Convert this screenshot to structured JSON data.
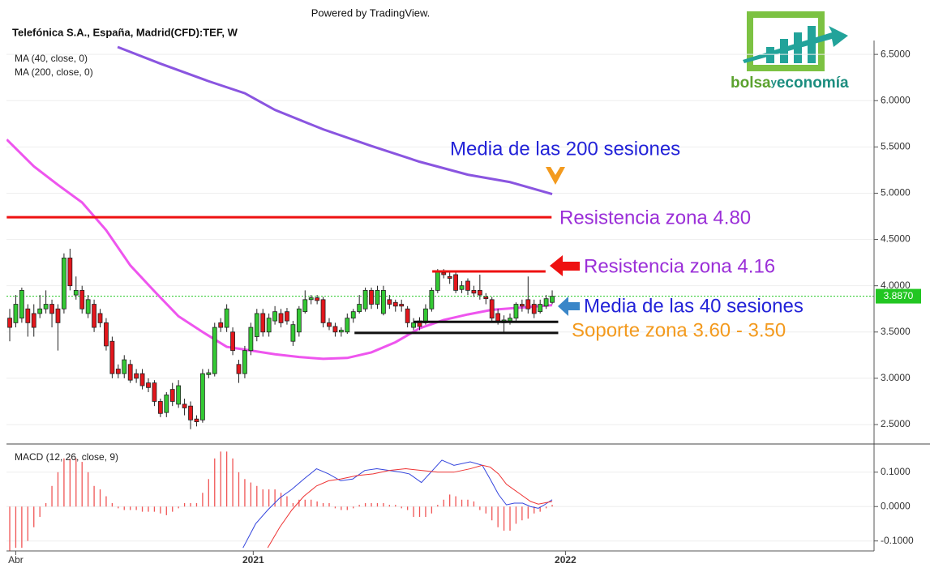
{
  "header": {
    "powered_by": "Powered by TradingView.",
    "logo": {
      "parts": [
        "bolsa",
        "y",
        "economía"
      ]
    }
  },
  "chart_data": [
    {
      "type": "candlestick",
      "title": "Telefónica S.A., España, Madrid(CFD):TEF, W",
      "x": [
        -1,
        0,
        1,
        2,
        3,
        4,
        5,
        6,
        7,
        8,
        9,
        10,
        11,
        12,
        13,
        14,
        15,
        16,
        17,
        18,
        19,
        20,
        21,
        22,
        23,
        24,
        25,
        26,
        27,
        28,
        29,
        30,
        31,
        32,
        33,
        34,
        35,
        36,
        37,
        38,
        39,
        40,
        41,
        42,
        43,
        44,
        45,
        46,
        47,
        48,
        49,
        50,
        51,
        52,
        53,
        54,
        55,
        56,
        57,
        58,
        59,
        60,
        61,
        62,
        63,
        64,
        65,
        66,
        67,
        68,
        69,
        70,
        71,
        72,
        73,
        74,
        75,
        76,
        77,
        78,
        79,
        80,
        81,
        82,
        83,
        84,
        85,
        86,
        87,
        88,
        89
      ],
      "open": [
        3.65,
        3.6,
        3.65,
        3.75,
        3.7,
        3.7,
        3.75,
        3.8,
        3.75,
        3.75,
        4.3,
        3.9,
        3.95,
        3.7,
        3.8,
        3.7,
        3.6,
        3.4,
        3.1,
        3.05,
        3.15,
        3.05,
        3.05,
        2.95,
        2.95,
        2.75,
        2.63,
        2.88,
        2.72,
        2.72,
        2.7,
        2.56,
        2.55,
        3.04,
        3.05,
        3.6,
        3.55,
        3.5,
        3.15,
        3.05,
        3.3,
        3.45,
        3.7,
        3.5,
        3.62,
        3.7,
        3.72,
        3.4,
        3.5,
        3.72,
        3.85,
        3.87,
        3.85,
        3.6,
        3.56,
        3.5,
        3.5,
        3.65,
        3.72,
        3.75,
        3.95,
        3.8,
        3.7,
        3.85,
        3.82,
        3.8,
        3.75,
        3.55,
        3.62,
        3.6,
        3.75,
        3.95,
        4.14,
        4.1,
        4.12,
        3.96,
        4.05,
        3.95,
        3.95,
        3.88,
        3.85,
        3.7,
        3.6,
        3.62,
        3.65,
        3.8,
        3.85,
        3.8,
        3.72,
        3.78,
        3.82
      ],
      "high": [
        3.75,
        3.9,
        3.98,
        3.8,
        3.8,
        3.9,
        3.95,
        3.85,
        3.8,
        4.35,
        4.4,
        4.1,
        4.0,
        3.9,
        3.85,
        3.75,
        3.65,
        3.45,
        3.15,
        3.25,
        3.2,
        3.1,
        3.1,
        3.0,
        2.98,
        2.78,
        2.85,
        2.95,
        2.98,
        2.78,
        2.75,
        2.6,
        3.1,
        3.1,
        3.6,
        3.65,
        3.8,
        3.55,
        3.2,
        3.35,
        3.6,
        3.75,
        3.75,
        3.7,
        3.78,
        3.75,
        3.76,
        3.62,
        3.78,
        3.95,
        3.9,
        3.9,
        3.88,
        3.65,
        3.6,
        3.55,
        3.7,
        3.75,
        3.9,
        3.98,
        3.98,
        4.0,
        4.0,
        3.9,
        3.85,
        3.85,
        3.78,
        3.65,
        3.66,
        3.8,
        3.98,
        4.18,
        4.18,
        4.15,
        4.15,
        4.05,
        4.08,
        4.0,
        4.12,
        3.92,
        3.88,
        3.75,
        3.68,
        3.7,
        3.82,
        3.85,
        4.1,
        3.85,
        3.85,
        3.9,
        3.95
      ],
      "low": [
        3.4,
        3.55,
        3.6,
        3.45,
        3.45,
        3.65,
        3.7,
        3.55,
        3.3,
        3.7,
        3.95,
        3.85,
        3.7,
        3.65,
        3.5,
        3.55,
        3.3,
        3.0,
        3.0,
        3.0,
        2.95,
        2.95,
        2.88,
        2.85,
        2.7,
        2.58,
        2.58,
        2.7,
        2.68,
        2.6,
        2.45,
        2.48,
        2.52,
        3.0,
        3.02,
        3.5,
        3.5,
        3.25,
        2.95,
        3.0,
        3.25,
        3.4,
        3.45,
        3.45,
        3.58,
        3.55,
        3.58,
        3.35,
        3.45,
        3.7,
        3.8,
        3.8,
        3.55,
        3.52,
        3.45,
        3.45,
        3.48,
        3.6,
        3.7,
        3.72,
        3.75,
        3.75,
        3.68,
        3.75,
        3.72,
        3.72,
        3.55,
        3.52,
        3.52,
        3.58,
        3.72,
        3.92,
        4.08,
        4.02,
        3.92,
        3.92,
        3.9,
        3.88,
        3.85,
        3.8,
        3.6,
        3.58,
        3.5,
        3.58,
        3.62,
        3.72,
        3.7,
        3.65,
        3.7,
        3.75,
        3.8
      ],
      "close": [
        3.55,
        3.8,
        3.95,
        3.6,
        3.55,
        3.75,
        3.8,
        3.7,
        3.6,
        4.3,
        4.0,
        3.95,
        3.75,
        3.85,
        3.55,
        3.6,
        3.35,
        3.05,
        3.05,
        3.2,
        2.98,
        3.0,
        2.92,
        2.9,
        2.75,
        2.62,
        2.82,
        2.75,
        2.92,
        2.68,
        2.55,
        2.53,
        3.05,
        3.06,
        3.55,
        3.55,
        3.75,
        3.3,
        3.05,
        3.3,
        3.55,
        3.7,
        3.5,
        3.65,
        3.72,
        3.6,
        3.62,
        3.58,
        3.75,
        3.85,
        3.87,
        3.84,
        3.6,
        3.56,
        3.5,
        3.52,
        3.65,
        3.72,
        3.8,
        3.95,
        3.8,
        3.95,
        3.95,
        3.8,
        3.78,
        3.78,
        3.6,
        3.6,
        3.56,
        3.75,
        3.95,
        4.15,
        4.12,
        4.08,
        3.95,
        4.0,
        3.95,
        3.92,
        3.9,
        3.86,
        3.65,
        3.62,
        3.63,
        3.65,
        3.8,
        3.78,
        3.75,
        3.7,
        3.8,
        3.86,
        3.887
      ],
      "up_color": "#34c934",
      "down_color": "#e3161c",
      "xlim": [
        -1.54,
        142.4
      ],
      "ylim": [
        2.29,
        6.65
      ],
      "yticks": [
        {
          "value": 2.5,
          "label": "2.5000"
        },
        {
          "value": 3,
          "label": "3.0000"
        },
        {
          "value": 3.5,
          "label": "3.5000"
        },
        {
          "value": 4,
          "label": "4.0000"
        },
        {
          "value": 4.5,
          "label": "4.5000"
        },
        {
          "value": 5,
          "label": "5.0000"
        },
        {
          "value": 5.5,
          "label": "5.5000"
        },
        {
          "value": 6,
          "label": "6.0000"
        },
        {
          "value": 6.5,
          "label": "6.5000"
        }
      ],
      "grid": true,
      "lines": [
        {
          "name": "MA (40, close, 0)",
          "color": "#ee55ee",
          "x": [
            -1.5,
            3,
            7,
            11,
            15,
            19,
            23,
            27,
            31,
            35,
            39,
            43,
            47,
            51,
            55,
            59,
            63,
            67,
            71,
            75,
            79,
            83,
            89
          ],
          "values": [
            5.58,
            5.29,
            5.09,
            4.9,
            4.6,
            4.22,
            3.94,
            3.67,
            3.5,
            3.34,
            3.3,
            3.26,
            3.23,
            3.21,
            3.22,
            3.28,
            3.39,
            3.54,
            3.63,
            3.69,
            3.74,
            3.76,
            3.79
          ]
        },
        {
          "name": "MA (200, close, 0)",
          "color": "#8a55e0",
          "x": [
            16.9,
            24,
            32,
            38,
            43,
            51,
            59,
            67,
            75,
            82,
            89
          ],
          "values": [
            6.58,
            6.4,
            6.21,
            6.08,
            5.9,
            5.69,
            5.51,
            5.34,
            5.2,
            5.12,
            4.99
          ]
        }
      ],
      "last_price": {
        "value": 3.887,
        "label": "3.8870",
        "color": "#22c622"
      },
      "levels": [
        {
          "value": 4.74,
          "x": [
            -1.5,
            88.9
          ],
          "color": "#ee1111"
        },
        {
          "value": 4.155,
          "x": [
            69.1,
            87.9
          ],
          "color": "#ee1111"
        },
        {
          "value": 3.61,
          "x": [
            66,
            90
          ],
          "color": "#111111"
        },
        {
          "value": 3.49,
          "x": [
            56.2,
            90
          ],
          "color": "#111111"
        }
      ],
      "annotations": [
        {
          "text": "Media de las 200 sesiones",
          "color": "#2323d8"
        },
        {
          "text": "Resistencia zona 4.80",
          "color": "#9b2fd8"
        },
        {
          "text": "Resistencia zona 4.16",
          "color": "#9b2fd8"
        },
        {
          "text": "Media de las 40 sesiones",
          "color": "#2323d8"
        },
        {
          "text": "Soporte zona 3.60 - 3.50",
          "color": "#f39a1e"
        }
      ]
    },
    {
      "type": "macd",
      "title": "MACD (12, 26, close, 9)",
      "xlim": [
        -1.54,
        142.4
      ],
      "xticks": [
        {
          "value": 0,
          "label": "Abr"
        },
        {
          "value": 39.4,
          "label": "2021"
        },
        {
          "value": 91.2,
          "label": "2022"
        }
      ],
      "ylim": [
        -0.129,
        0.182
      ],
      "yticks": [
        {
          "value": 0.1,
          "label": "0.1000"
        },
        {
          "value": 0,
          "label": "0.0000"
        },
        {
          "value": -0.1,
          "label": "-0.1000"
        }
      ],
      "histogram": {
        "color": "#f05555",
        "values": [
          -0.13,
          -0.12,
          -0.12,
          -0.1,
          -0.06,
          -0.03,
          0.01,
          0.06,
          0.1,
          0.14,
          0.14,
          0.14,
          0.13,
          0.1,
          0.06,
          0.05,
          0.03,
          0.01,
          -0.005,
          -0.01,
          -0.01,
          -0.01,
          -0.015,
          -0.015,
          -0.015,
          -0.02,
          -0.025,
          -0.015,
          -0.005,
          0.01,
          0.01,
          0.01,
          0.04,
          0.08,
          0.14,
          0.16,
          0.16,
          0.14,
          0.1,
          0.08,
          0.07,
          0.06,
          0.05,
          0.05,
          0.05,
          0.04,
          0.03,
          0.01,
          0.02,
          0.02,
          0.02,
          0.015,
          0.01,
          0.01,
          -0.005,
          -0.01,
          -0.01,
          -0.005,
          0.005,
          0.01,
          0.01,
          0.01,
          0.01,
          0.005,
          0.005,
          -0.005,
          -0.01,
          -0.03,
          -0.03,
          -0.03,
          -0.02,
          0.005,
          0.02,
          0.035,
          0.03,
          0.02,
          0.02,
          0.015,
          -0.01,
          -0.02,
          -0.04,
          -0.06,
          -0.07,
          -0.07,
          -0.05,
          -0.04,
          -0.035,
          -0.02,
          -0.015,
          -0.005,
          0.005
        ]
      },
      "series": [
        {
          "color": "#3344dd",
          "x": [
            37.7,
            39.8,
            41.8,
            43.8,
            45.8,
            47.8,
            49.9,
            51.9,
            53.9,
            55.9,
            57.9,
            59.9,
            61.9,
            63.9,
            65.3,
            67.3,
            69.4,
            70.7,
            72.7,
            75.4,
            77.4,
            78.7,
            80.1,
            81.4,
            82.7,
            84.1,
            85.4,
            86.7,
            87.7,
            89
          ],
          "values": [
            -0.12,
            -0.05,
            -0.01,
            0.025,
            0.05,
            0.08,
            0.11,
            0.095,
            0.075,
            0.08,
            0.105,
            0.11,
            0.105,
            0.1,
            0.095,
            0.07,
            0.11,
            0.135,
            0.12,
            0.13,
            0.12,
            0.08,
            0.035,
            0.005,
            0.01,
            0.01,
            0,
            -0.005,
            0.005,
            0.02
          ]
        },
        {
          "color": "#ee3333",
          "x": [
            41.8,
            43.8,
            45.8,
            47.8,
            49.9,
            51.9,
            53.9,
            56.6,
            59.3,
            62,
            64.7,
            67.3,
            70,
            72.7,
            75.4,
            77.4,
            78.7,
            80.1,
            81.4,
            83.4,
            85.4,
            86.7,
            89
          ],
          "values": [
            -0.12,
            -0.06,
            -0.01,
            0.03,
            0.06,
            0.075,
            0.08,
            0.09,
            0.095,
            0.105,
            0.11,
            0.105,
            0.1,
            0.1,
            0.11,
            0.12,
            0.115,
            0.095,
            0.065,
            0.04,
            0.015,
            0.007,
            0.015
          ]
        }
      ]
    }
  ]
}
